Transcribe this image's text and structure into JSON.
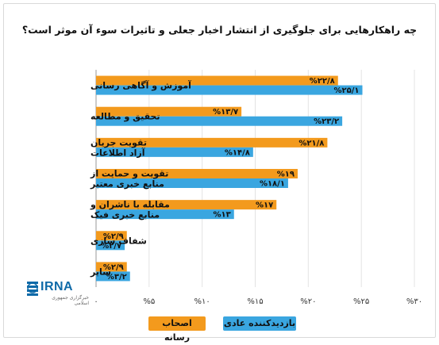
{
  "title": "چه راهکارهایی برای جلوگیری از انتشار اخبار جعلی و تاثیرات سوء آن موثر است؟",
  "legend": {
    "visitor_label": "بازدیدکننده عادی",
    "owner_label": "اصحاب رسانه"
  },
  "logo": {
    "text": "IRNA",
    "subtitle": "خبرگزاری جمهوری اسلامی"
  },
  "colors": {
    "owner": "#f39a1d",
    "visitor": "#3aa6e0"
  },
  "chart_data": {
    "type": "bar",
    "orientation": "horizontal",
    "categories": [
      [
        "آموزش و آگاهی رسانی"
      ],
      [
        "تحقیق و مطالعه"
      ],
      [
        "تقویت جریان",
        "آزاد اطلاعات"
      ],
      [
        "تقویت و حمایت از",
        "منابع خبری معتبر"
      ],
      [
        "مقابله با ناشران و",
        "منابع خبری فیک"
      ],
      [
        "شفاف سازی"
      ],
      [
        "سایر"
      ]
    ],
    "series": [
      {
        "name": "اصحاب رسانه",
        "color": "#f39a1d",
        "values": [
          22.8,
          13.7,
          21.8,
          19,
          17,
          2.9,
          2.9
        ],
        "labels": [
          "%۲۲/۸",
          "%۱۳/۷",
          "%۲۱/۸",
          "%۱۹",
          "%۱۷",
          "%۲/۹",
          "%۲/۹"
        ]
      },
      {
        "name": "بازدیدکننده عادی",
        "color": "#3aa6e0",
        "values": [
          25.1,
          23.2,
          14.8,
          18.1,
          13,
          2.7,
          3.2
        ],
        "labels": [
          "%۲۵/۱",
          "%۲۳/۲",
          "%۱۴/۸",
          "%۱۸/۱",
          "%۱۳",
          "%۲/۷",
          "%۳/۲"
        ]
      }
    ],
    "xlim": [
      0,
      30
    ],
    "ticks": [
      0,
      5,
      10,
      15,
      20,
      25,
      30
    ],
    "tick_labels": [
      "۰",
      "%۵",
      "%۱۰",
      "%۱۵",
      "%۲۰",
      "%۲۵",
      "%۳۰"
    ],
    "grid": true
  }
}
